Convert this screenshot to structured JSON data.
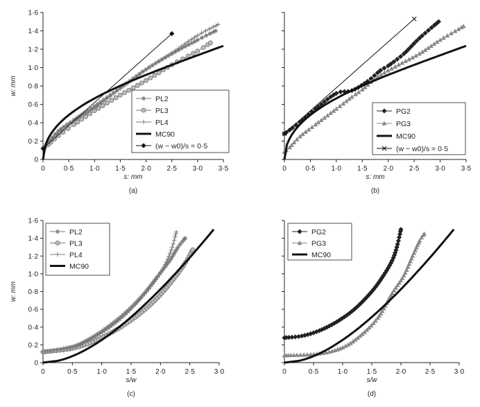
{
  "chart_data": [
    {
      "panel": "(a)",
      "type": "line",
      "xlabel": "s: mm",
      "ylabel": "w: mm",
      "xlim": [
        0,
        3.5
      ],
      "ylim": [
        0,
        1.6
      ],
      "xticks": [
        "0",
        "0·5",
        "1·0",
        "1·5",
        "2·0",
        "2·5",
        "3·0",
        "3·5"
      ],
      "yticks": [
        "0",
        "0·2",
        "0·4",
        "0·6",
        "0·8",
        "1·0",
        "1·2",
        "1·4",
        "1·6"
      ],
      "legend_position": "bottom-right",
      "series": [
        {
          "name": "PL2",
          "marker": "asterisk",
          "color": "#777777",
          "step": 0.07,
          "x": [
            0.02,
            0.1,
            0.3,
            0.6,
            1.0,
            1.5,
            2.0,
            2.5,
            3.0,
            3.35
          ],
          "y": [
            0.12,
            0.18,
            0.31,
            0.43,
            0.58,
            0.78,
            0.98,
            1.15,
            1.3,
            1.4
          ]
        },
        {
          "name": "PL3",
          "marker": "circle",
          "color": "#777777",
          "step": 0.1,
          "x": [
            0.02,
            0.1,
            0.3,
            0.6,
            1.0,
            1.5,
            2.0,
            2.5,
            3.0,
            3.25
          ],
          "y": [
            0.12,
            0.16,
            0.26,
            0.38,
            0.53,
            0.7,
            0.86,
            1.03,
            1.18,
            1.27
          ]
        },
        {
          "name": "PL4",
          "marker": "plus",
          "color": "#777777",
          "step": 0.07,
          "x": [
            0.02,
            0.1,
            0.3,
            0.6,
            1.0,
            1.5,
            2.0,
            2.5,
            3.0,
            3.4
          ],
          "y": [
            0.12,
            0.18,
            0.3,
            0.42,
            0.56,
            0.77,
            0.98,
            1.16,
            1.35,
            1.47
          ]
        },
        {
          "name": "MC90",
          "marker": "none",
          "color": "#111111",
          "width": 3,
          "curve": "mc90_s"
        },
        {
          "name": "(w − w0)/s = 0·5",
          "marker": "diamond",
          "color": "#111111",
          "markers_only_ends": true,
          "x": [
            0,
            2.5
          ],
          "y": [
            0.12,
            1.37
          ]
        }
      ]
    },
    {
      "panel": "(b)",
      "type": "line",
      "xlabel": "s: mm",
      "ylabel": "",
      "xlim": [
        0,
        3.5
      ],
      "ylim": [
        0,
        1.6
      ],
      "xticks": [
        "0",
        "0·5",
        "1·0",
        "1·5",
        "2·0",
        "2·5",
        "3·0",
        "3·5"
      ],
      "yticks": [
        "",
        "",
        "",
        "",
        "",
        "",
        "",
        "",
        ""
      ],
      "legend_position": "bottom-right",
      "series": [
        {
          "name": "PG2",
          "marker": "diamond",
          "color": "#222222",
          "step": 0.07,
          "x": [
            0.0,
            0.1,
            0.3,
            0.6,
            1.0,
            1.3,
            1.6,
            1.85,
            2.0,
            2.3,
            2.6,
            2.97
          ],
          "y": [
            0.28,
            0.32,
            0.41,
            0.55,
            0.72,
            0.75,
            0.85,
            0.97,
            1.02,
            1.15,
            1.32,
            1.5
          ]
        },
        {
          "name": "PG3",
          "marker": "triangle",
          "color": "#888888",
          "step": 0.07,
          "x": [
            0.0,
            0.1,
            0.3,
            0.6,
            1.0,
            1.3,
            1.5,
            1.8,
            2.2,
            2.6,
            3.0,
            3.45
          ],
          "y": [
            0.08,
            0.13,
            0.25,
            0.38,
            0.55,
            0.68,
            0.76,
            0.9,
            1.03,
            1.15,
            1.3,
            1.45
          ]
        },
        {
          "name": "MC90",
          "marker": "none",
          "color": "#111111",
          "width": 3,
          "curve": "mc90_s"
        },
        {
          "name": "(w − w0)/s = 0·5",
          "marker": "x",
          "color": "#111111",
          "markers_only_ends": true,
          "x": [
            0,
            2.5
          ],
          "y": [
            0.28,
            1.53
          ]
        }
      ]
    },
    {
      "panel": "(c)",
      "type": "line",
      "xlabel": "s/w",
      "ylabel": "w: mm",
      "xlim": [
        0,
        3.0
      ],
      "ylim": [
        0,
        1.6
      ],
      "xticks": [
        "0",
        "0·5",
        "1·0",
        "1·5",
        "2·0",
        "2·5",
        "3·0"
      ],
      "yticks": [
        "0",
        "0·2",
        "0·4",
        "0·6",
        "0·8",
        "1·0",
        "1·2",
        "1·4",
        "1·6"
      ],
      "legend_position": "top-left",
      "series": [
        {
          "name": "PL2",
          "marker": "asterisk",
          "color": "#777777",
          "step": 0.05,
          "x": [
            0.0,
            0.5,
            0.8,
            1.1,
            1.4,
            1.7,
            1.95,
            2.15,
            2.3,
            2.42
          ],
          "y": [
            0.12,
            0.18,
            0.27,
            0.4,
            0.56,
            0.76,
            0.97,
            1.14,
            1.3,
            1.4
          ]
        },
        {
          "name": "PL3",
          "marker": "circle",
          "color": "#777777",
          "step": 0.05,
          "x": [
            0.0,
            0.5,
            0.9,
            1.3,
            1.65,
            1.95,
            2.2,
            2.4,
            2.55
          ],
          "y": [
            0.12,
            0.16,
            0.25,
            0.39,
            0.55,
            0.73,
            0.92,
            1.1,
            1.27
          ]
        },
        {
          "name": "PL4",
          "marker": "plus",
          "color": "#777777",
          "step": 0.05,
          "x": [
            0.0,
            0.5,
            0.8,
            1.1,
            1.4,
            1.7,
            1.95,
            2.1,
            2.2,
            2.27
          ],
          "y": [
            0.12,
            0.17,
            0.26,
            0.38,
            0.54,
            0.75,
            0.96,
            1.13,
            1.3,
            1.47
          ]
        },
        {
          "name": "MC90",
          "marker": "none",
          "color": "#111111",
          "width": 3,
          "curve": "mc90_sw"
        }
      ]
    },
    {
      "panel": "(d)",
      "type": "line",
      "xlabel": "s/w",
      "ylabel": "",
      "xlim": [
        0,
        3.0
      ],
      "ylim": [
        0,
        1.6
      ],
      "xticks": [
        "0",
        "0·5",
        "1·0",
        "1·5",
        "2·0",
        "2·5",
        "3·0"
      ],
      "yticks": [
        "",
        "",
        "",
        "",
        "",
        "",
        "",
        "",
        ""
      ],
      "legend_position": "top-left",
      "series": [
        {
          "name": "PG2",
          "marker": "diamond",
          "color": "#222222",
          "step": 0.05,
          "x": [
            0.0,
            0.3,
            0.6,
            0.9,
            1.2,
            1.5,
            1.7,
            1.85,
            1.93,
            2.0
          ],
          "y": [
            0.28,
            0.3,
            0.36,
            0.46,
            0.6,
            0.8,
            0.98,
            1.15,
            1.3,
            1.5
          ]
        },
        {
          "name": "PG3",
          "marker": "triangle",
          "color": "#888888",
          "step": 0.05,
          "x": [
            0.0,
            0.6,
            1.0,
            1.3,
            1.6,
            1.85,
            2.05,
            2.2,
            2.32,
            2.4
          ],
          "y": [
            0.08,
            0.1,
            0.17,
            0.3,
            0.5,
            0.78,
            0.98,
            1.2,
            1.37,
            1.45
          ]
        },
        {
          "name": "MC90",
          "marker": "none",
          "color": "#111111",
          "width": 3,
          "curve": "mc90_sw"
        }
      ]
    }
  ]
}
